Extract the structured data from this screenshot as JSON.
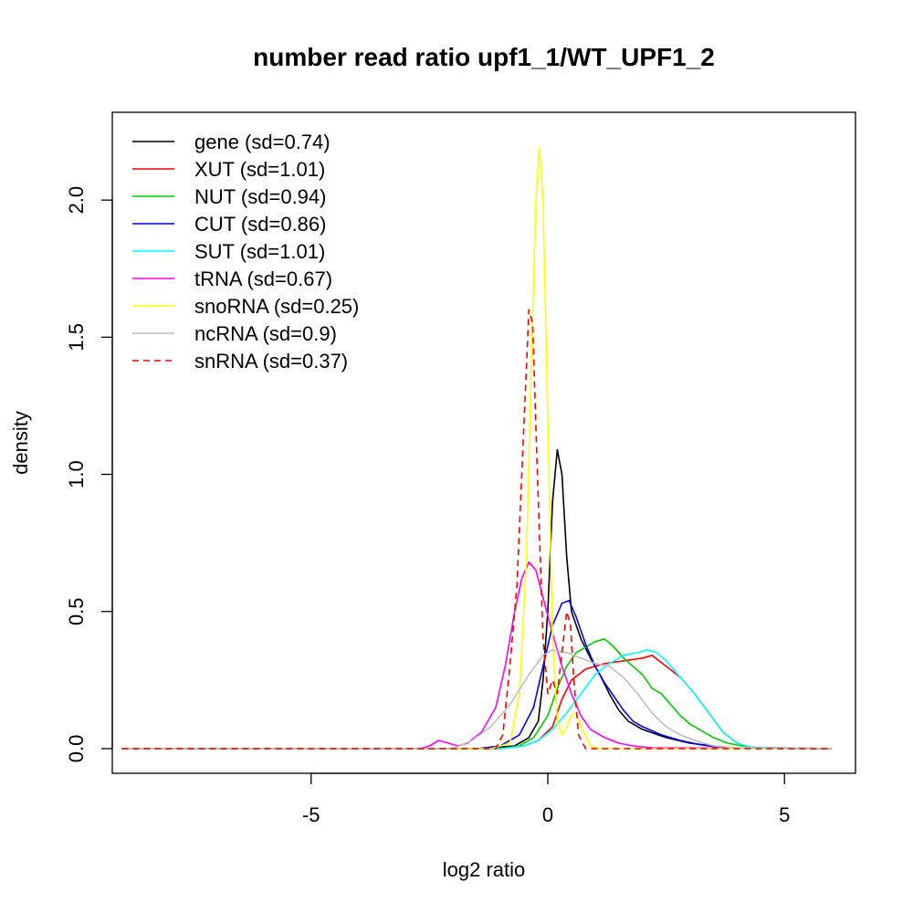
{
  "chart_data": {
    "type": "line",
    "title": "number read ratio upf1_1/WT_UPF1_2",
    "xlabel": "log2 ratio",
    "ylabel": "density",
    "xlim": [
      -9.2,
      6.5
    ],
    "ylim": [
      -0.09,
      2.32
    ],
    "x_ticks": [
      -5,
      0,
      5
    ],
    "x_tick_labels": [
      "-5",
      "0",
      "5"
    ],
    "y_ticks": [
      0,
      0.5,
      1,
      1.5,
      2
    ],
    "y_tick_labels": [
      "0.0",
      "0.5",
      "1.0",
      "1.5",
      "2.0"
    ],
    "grid": false,
    "legend_position": "top-left",
    "series": [
      {
        "name": "gene (sd=0.74)",
        "color": "#000000",
        "dash": "solid",
        "points": [
          [
            -9,
            0
          ],
          [
            -1.5,
            0
          ],
          [
            -0.7,
            0.01
          ],
          [
            -0.4,
            0.04
          ],
          [
            -0.2,
            0.1
          ],
          [
            -0.1,
            0.25
          ],
          [
            0,
            0.5
          ],
          [
            0.1,
            0.9
          ],
          [
            0.2,
            1.09
          ],
          [
            0.3,
            1.0
          ],
          [
            0.4,
            0.7
          ],
          [
            0.5,
            0.5
          ],
          [
            0.7,
            0.4
          ],
          [
            0.9,
            0.33
          ],
          [
            1.1,
            0.27
          ],
          [
            1.3,
            0.2
          ],
          [
            1.5,
            0.14
          ],
          [
            1.7,
            0.1
          ],
          [
            2,
            0.07
          ],
          [
            2.5,
            0.04
          ],
          [
            3,
            0.02
          ],
          [
            3.5,
            0.01
          ],
          [
            4,
            0.002
          ],
          [
            6,
            0
          ]
        ]
      },
      {
        "name": "XUT (sd=1.01)",
        "color": "#ff0000",
        "dash": "solid",
        "points": [
          [
            -9,
            0
          ],
          [
            -1,
            0
          ],
          [
            -0.5,
            0.01
          ],
          [
            -0.2,
            0.03
          ],
          [
            0.1,
            0.08
          ],
          [
            0.3,
            0.18
          ],
          [
            0.5,
            0.25
          ],
          [
            0.8,
            0.29
          ],
          [
            1.2,
            0.31
          ],
          [
            1.6,
            0.32
          ],
          [
            2,
            0.33
          ],
          [
            2.2,
            0.34
          ],
          [
            2.5,
            0.3
          ],
          [
            2.8,
            0.26
          ],
          [
            3.1,
            0.2
          ],
          [
            3.4,
            0.13
          ],
          [
            3.7,
            0.06
          ],
          [
            4,
            0.02
          ],
          [
            4.3,
            0.005
          ],
          [
            6,
            0
          ]
        ]
      },
      {
        "name": "NUT (sd=0.94)",
        "color": "#00cd00",
        "dash": "solid",
        "points": [
          [
            -9,
            0
          ],
          [
            -1,
            0
          ],
          [
            -0.6,
            0.01
          ],
          [
            -0.3,
            0.04
          ],
          [
            0,
            0.12
          ],
          [
            0.2,
            0.22
          ],
          [
            0.4,
            0.3
          ],
          [
            0.6,
            0.35
          ],
          [
            0.8,
            0.37
          ],
          [
            1,
            0.39
          ],
          [
            1.2,
            0.4
          ],
          [
            1.4,
            0.37
          ],
          [
            1.6,
            0.33
          ],
          [
            1.8,
            0.3
          ],
          [
            2,
            0.27
          ],
          [
            2.2,
            0.22
          ],
          [
            2.4,
            0.2
          ],
          [
            2.6,
            0.16
          ],
          [
            2.8,
            0.12
          ],
          [
            3,
            0.09
          ],
          [
            3.2,
            0.07
          ],
          [
            3.5,
            0.04
          ],
          [
            3.8,
            0.02
          ],
          [
            4.1,
            0.01
          ],
          [
            4.5,
            0.002
          ],
          [
            6,
            0
          ]
        ]
      },
      {
        "name": "CUT (sd=0.86)",
        "color": "#0000ff",
        "dash": "solid",
        "points": [
          [
            -9,
            0
          ],
          [
            -1.5,
            0
          ],
          [
            -1,
            0.01
          ],
          [
            -0.6,
            0.05
          ],
          [
            -0.3,
            0.15
          ],
          [
            -0.1,
            0.3
          ],
          [
            0.1,
            0.45
          ],
          [
            0.3,
            0.53
          ],
          [
            0.45,
            0.54
          ],
          [
            0.6,
            0.48
          ],
          [
            0.8,
            0.38
          ],
          [
            1,
            0.3
          ],
          [
            1.2,
            0.24
          ],
          [
            1.4,
            0.19
          ],
          [
            1.6,
            0.14
          ],
          [
            1.8,
            0.1
          ],
          [
            2,
            0.08
          ],
          [
            2.4,
            0.05
          ],
          [
            2.8,
            0.03
          ],
          [
            3.2,
            0.015
          ],
          [
            3.6,
            0.005
          ],
          [
            4,
            0.001
          ],
          [
            6,
            0
          ]
        ]
      },
      {
        "name": "SUT (sd=1.01)",
        "color": "#00ffff",
        "dash": "solid",
        "points": [
          [
            -9,
            0
          ],
          [
            -1,
            0
          ],
          [
            -0.5,
            0.01
          ],
          [
            -0.2,
            0.03
          ],
          [
            0.1,
            0.07
          ],
          [
            0.4,
            0.13
          ],
          [
            0.7,
            0.2
          ],
          [
            1,
            0.27
          ],
          [
            1.3,
            0.31
          ],
          [
            1.6,
            0.34
          ],
          [
            1.9,
            0.35
          ],
          [
            2.1,
            0.36
          ],
          [
            2.3,
            0.35
          ],
          [
            2.5,
            0.32
          ],
          [
            2.8,
            0.26
          ],
          [
            3.1,
            0.2
          ],
          [
            3.4,
            0.13
          ],
          [
            3.7,
            0.06
          ],
          [
            4,
            0.02
          ],
          [
            4.3,
            0.005
          ],
          [
            6,
            0
          ]
        ]
      },
      {
        "name": "tRNA (sd=0.67)",
        "color": "#ff00ff",
        "dash": "solid",
        "points": [
          [
            -9,
            0
          ],
          [
            -2.7,
            0
          ],
          [
            -2.5,
            0.01
          ],
          [
            -2.3,
            0.03
          ],
          [
            -2.1,
            0.02
          ],
          [
            -1.9,
            0.01
          ],
          [
            -1.7,
            0.02
          ],
          [
            -1.4,
            0.06
          ],
          [
            -1.1,
            0.15
          ],
          [
            -0.9,
            0.3
          ],
          [
            -0.7,
            0.5
          ],
          [
            -0.55,
            0.62
          ],
          [
            -0.4,
            0.68
          ],
          [
            -0.25,
            0.65
          ],
          [
            -0.1,
            0.55
          ],
          [
            0.1,
            0.42
          ],
          [
            0.3,
            0.3
          ],
          [
            0.5,
            0.2
          ],
          [
            0.7,
            0.12
          ],
          [
            0.9,
            0.07
          ],
          [
            1.2,
            0.04
          ],
          [
            1.5,
            0.02
          ],
          [
            1.8,
            0.01
          ],
          [
            2.2,
            0.003
          ],
          [
            6,
            0
          ]
        ]
      },
      {
        "name": "snoRNA (sd=0.25)",
        "color": "#ffff00",
        "dash": "solid",
        "points": [
          [
            -9,
            0
          ],
          [
            -1.2,
            0
          ],
          [
            -0.8,
            0.02
          ],
          [
            -0.6,
            0.2
          ],
          [
            -0.45,
            0.7
          ],
          [
            -0.35,
            1.4
          ],
          [
            -0.25,
            2.0
          ],
          [
            -0.18,
            2.19
          ],
          [
            -0.1,
            2.0
          ],
          [
            0,
            1.2
          ],
          [
            0.1,
            0.4
          ],
          [
            0.2,
            0.1
          ],
          [
            0.3,
            0.05
          ],
          [
            0.4,
            0.08
          ],
          [
            0.5,
            0.12
          ],
          [
            0.6,
            0.13
          ],
          [
            0.7,
            0.08
          ],
          [
            0.9,
            0.01
          ],
          [
            1.1,
            0
          ],
          [
            6,
            0
          ]
        ]
      },
      {
        "name": "ncRNA (sd=0.9)",
        "color": "#bebebe",
        "dash": "solid",
        "points": [
          [
            -9,
            0
          ],
          [
            -2,
            0
          ],
          [
            -1.6,
            0.03
          ],
          [
            -1.2,
            0.08
          ],
          [
            -0.8,
            0.16
          ],
          [
            -0.4,
            0.27
          ],
          [
            -0.1,
            0.34
          ],
          [
            0.1,
            0.36
          ],
          [
            0.4,
            0.35
          ],
          [
            0.7,
            0.33
          ],
          [
            1,
            0.31
          ],
          [
            1.3,
            0.3
          ],
          [
            1.6,
            0.26
          ],
          [
            1.9,
            0.2
          ],
          [
            2.2,
            0.13
          ],
          [
            2.5,
            0.08
          ],
          [
            2.8,
            0.05
          ],
          [
            3.1,
            0.03
          ],
          [
            3.5,
            0.01
          ],
          [
            4,
            0.003
          ],
          [
            6,
            0
          ]
        ]
      },
      {
        "name": "snRNA (sd=0.37)",
        "color": "#ff0000",
        "dash": "dashed",
        "points": [
          [
            -9,
            0
          ],
          [
            -1.1,
            0
          ],
          [
            -0.95,
            0.05
          ],
          [
            -0.8,
            0.3
          ],
          [
            -0.65,
            0.6
          ],
          [
            -0.5,
            1.2
          ],
          [
            -0.4,
            1.6
          ],
          [
            -0.32,
            1.55
          ],
          [
            -0.22,
            1.0
          ],
          [
            -0.1,
            0.4
          ],
          [
            0,
            0.2
          ],
          [
            0.1,
            0.25
          ],
          [
            0.2,
            0.2
          ],
          [
            0.3,
            0.35
          ],
          [
            0.4,
            0.5
          ],
          [
            0.48,
            0.45
          ],
          [
            0.55,
            0.25
          ],
          [
            0.65,
            0.05
          ],
          [
            0.8,
            0
          ],
          [
            6,
            0
          ]
        ]
      }
    ]
  }
}
